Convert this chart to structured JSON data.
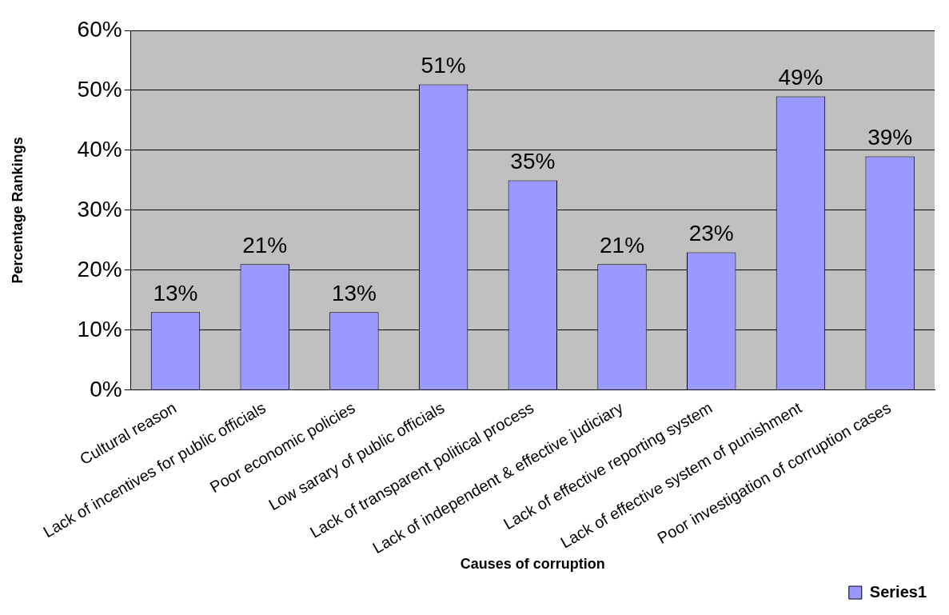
{
  "chart_data": {
    "type": "bar",
    "xlabel": "Causes of corruption",
    "ylabel": "Percentage Rankings",
    "categories": [
      "Cultural reason",
      "Lack of incentives for public officials",
      "Poor economic policies",
      "Low sarary of public officials",
      "Lack of transparent political process",
      "Lack of independent & effective judiciary",
      "Lack of effective reporting system",
      "Lack of effective system of punishment",
      "Poor investigation of corruption cases"
    ],
    "series": [
      {
        "name": "Series1",
        "color": "#9999ff",
        "values": [
          13,
          21,
          13,
          51,
          35,
          21,
          23,
          49,
          39
        ],
        "value_labels": [
          "13%",
          "21%",
          "13%",
          "51%",
          "35%",
          "21%",
          "23%",
          "49%",
          "39%"
        ]
      }
    ],
    "ylim": [
      0,
      60
    ],
    "yticks": [
      {
        "value": 0,
        "label": "0%"
      },
      {
        "value": 10,
        "label": "10%"
      },
      {
        "value": 20,
        "label": "20%"
      },
      {
        "value": 30,
        "label": "30%"
      },
      {
        "value": 40,
        "label": "40%"
      },
      {
        "value": 50,
        "label": "50%"
      },
      {
        "value": 60,
        "label": "60%"
      }
    ],
    "grid": "y",
    "legend": "bottom right"
  }
}
